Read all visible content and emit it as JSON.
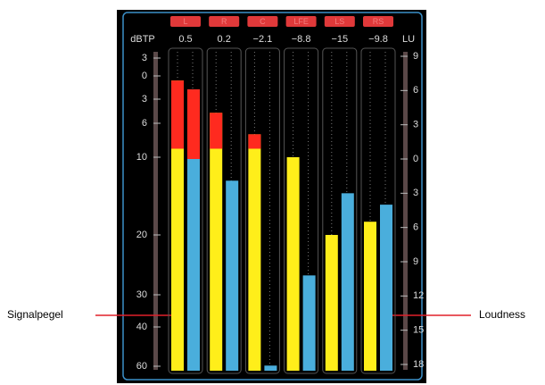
{
  "channels": [
    {
      "label": "L",
      "peak": "0.5",
      "signal": -0.6,
      "loudness": 6.1
    },
    {
      "label": "R",
      "peak": "0.2",
      "signal": -4.7,
      "loudness": -1.9
    },
    {
      "label": "C",
      "peak": "−2.1",
      "signal": -7.3,
      "loudness": -18.1
    },
    {
      "label": "LFE",
      "peak": "−8.8",
      "signal": -10,
      "loudness": -10.2
    },
    {
      "label": "LS",
      "peak": "−15",
      "signal": -20,
      "loudness": -3
    },
    {
      "label": "RS",
      "peak": "−9.8",
      "signal": -18.3,
      "loudness": -4
    }
  ],
  "left_scale": {
    "unit": "dBTP",
    "ticks": [
      3,
      0,
      {
        "value": -3,
        "label": "3"
      },
      {
        "value": -6,
        "label": "6"
      },
      {
        "value": -10,
        "label": "10"
      },
      {
        "value": -20,
        "label": "20"
      },
      {
        "value": -30,
        "label": "30"
      },
      {
        "value": -40,
        "label": "40"
      },
      {
        "value": -60,
        "label": "60"
      }
    ]
  },
  "right_scale": {
    "unit": "LU",
    "ticks": [
      9,
      6,
      3,
      0,
      {
        "value": -3,
        "label": "3"
      },
      {
        "value": -6,
        "label": "6"
      },
      {
        "value": -9,
        "label": "9"
      },
      {
        "value": -12,
        "label": "12"
      },
      {
        "value": -15,
        "label": "15"
      },
      {
        "value": -18,
        "label": "18"
      }
    ]
  },
  "annotations": {
    "signal": "Signalpegel",
    "loudness": "Loudness"
  }
}
